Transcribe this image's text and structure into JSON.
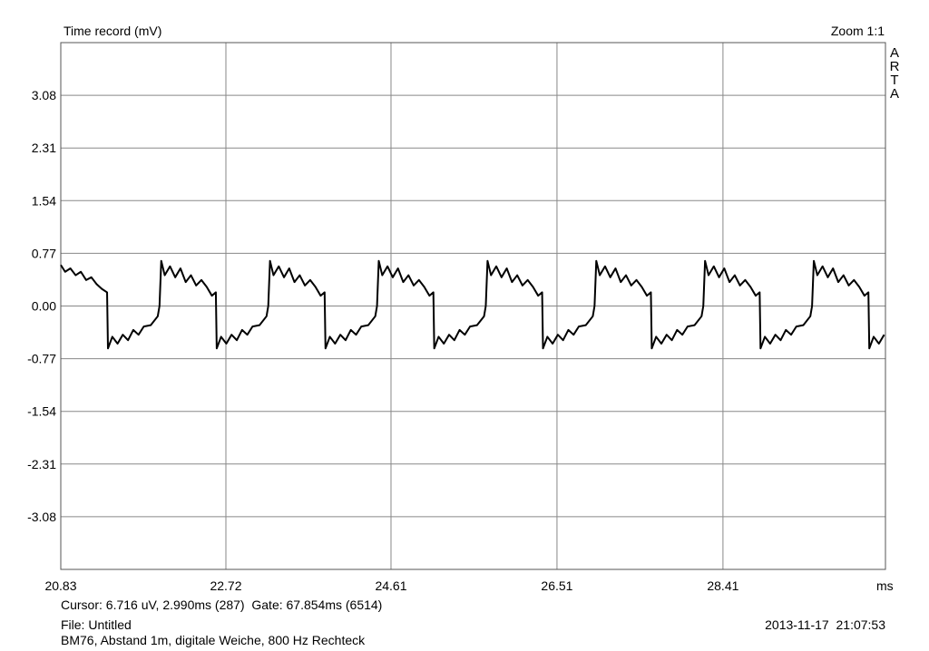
{
  "chart_data": {
    "type": "line",
    "title": "Time record (mV)",
    "zoom_label": "Zoom 1:1",
    "brand": "ARTA",
    "xlabel": "ms",
    "color": "#000000",
    "grid": true,
    "xlim": [
      20.83,
      30.27
    ],
    "xticks": [
      20.83,
      22.72,
      24.61,
      26.51,
      28.41
    ],
    "ylim": [
      -3.85,
      3.85
    ],
    "yticks": [
      -3.08,
      -2.31,
      -1.54,
      -0.77,
      {
        "value": 0,
        "label": "0.00"
      },
      0.77,
      1.54,
      2.31,
      3.08
    ],
    "x": [
      20.83,
      20.88,
      20.94,
      21.0,
      21.06,
      21.12,
      21.18,
      21.24,
      21.3,
      21.36,
      21.37,
      21.42,
      21.48,
      21.54,
      21.6,
      21.66,
      21.72,
      21.78,
      21.86,
      21.94,
      21.96,
      21.98,
      22.02,
      22.08,
      22.14,
      22.2,
      22.26,
      22.32,
      22.38,
      22.44,
      22.5,
      22.56,
      22.605,
      22.615,
      22.665,
      22.725,
      22.785,
      22.845,
      22.905,
      22.965,
      23.025,
      23.105,
      23.185,
      23.205,
      23.225,
      23.265,
      23.325,
      23.385,
      23.445,
      23.505,
      23.565,
      23.625,
      23.685,
      23.745,
      23.805,
      23.85,
      23.86,
      23.91,
      23.97,
      24.03,
      24.09,
      24.15,
      24.21,
      24.27,
      24.35,
      24.43,
      24.45,
      24.47,
      24.51,
      24.57,
      24.63,
      24.69,
      24.75,
      24.81,
      24.87,
      24.93,
      24.99,
      25.05,
      25.095,
      25.105,
      25.155,
      25.215,
      25.275,
      25.335,
      25.395,
      25.455,
      25.515,
      25.595,
      25.675,
      25.695,
      25.715,
      25.755,
      25.815,
      25.875,
      25.935,
      25.995,
      26.055,
      26.115,
      26.175,
      26.235,
      26.295,
      26.34,
      26.35,
      26.4,
      26.46,
      26.52,
      26.58,
      26.64,
      26.7,
      26.76,
      26.84,
      26.92,
      26.94,
      26.96,
      27.0,
      27.06,
      27.12,
      27.18,
      27.24,
      27.3,
      27.36,
      27.42,
      27.48,
      27.54,
      27.585,
      27.595,
      27.645,
      27.705,
      27.765,
      27.825,
      27.885,
      27.945,
      28.005,
      28.085,
      28.165,
      28.185,
      28.205,
      28.245,
      28.305,
      28.365,
      28.425,
      28.485,
      28.545,
      28.605,
      28.665,
      28.725,
      28.785,
      28.83,
      28.84,
      28.89,
      28.95,
      29.01,
      29.07,
      29.13,
      29.19,
      29.25,
      29.33,
      29.41,
      29.43,
      29.45,
      29.49,
      29.55,
      29.61,
      29.67,
      29.73,
      29.79,
      29.85,
      29.91,
      29.97,
      30.03,
      30.075,
      30.085,
      30.135,
      30.195,
      30.255
    ],
    "values": [
      0.6,
      0.5,
      0.55,
      0.45,
      0.5,
      0.38,
      0.42,
      0.32,
      0.25,
      0.2,
      -0.62,
      -0.45,
      -0.55,
      -0.42,
      -0.5,
      -0.35,
      -0.42,
      -0.3,
      -0.28,
      -0.15,
      0.0,
      0.66,
      0.45,
      0.58,
      0.42,
      0.55,
      0.35,
      0.45,
      0.3,
      0.38,
      0.28,
      0.15,
      0.2,
      -0.62,
      -0.45,
      -0.55,
      -0.42,
      -0.5,
      -0.35,
      -0.42,
      -0.3,
      -0.28,
      -0.15,
      0.0,
      0.66,
      0.45,
      0.58,
      0.42,
      0.55,
      0.35,
      0.45,
      0.3,
      0.38,
      0.28,
      0.15,
      0.2,
      -0.62,
      -0.45,
      -0.55,
      -0.42,
      -0.5,
      -0.35,
      -0.42,
      -0.3,
      -0.28,
      -0.15,
      0.0,
      0.66,
      0.45,
      0.58,
      0.42,
      0.55,
      0.35,
      0.45,
      0.3,
      0.38,
      0.28,
      0.15,
      0.2,
      -0.62,
      -0.45,
      -0.55,
      -0.42,
      -0.5,
      -0.35,
      -0.42,
      -0.3,
      -0.28,
      -0.15,
      0.0,
      0.66,
      0.45,
      0.58,
      0.42,
      0.55,
      0.35,
      0.45,
      0.3,
      0.38,
      0.28,
      0.15,
      0.2,
      -0.62,
      -0.45,
      -0.55,
      -0.42,
      -0.5,
      -0.35,
      -0.42,
      -0.3,
      -0.28,
      -0.15,
      0.0,
      0.66,
      0.45,
      0.58,
      0.42,
      0.55,
      0.35,
      0.45,
      0.3,
      0.38,
      0.28,
      0.15,
      0.2,
      -0.62,
      -0.45,
      -0.55,
      -0.42,
      -0.5,
      -0.35,
      -0.42,
      -0.3,
      -0.28,
      -0.15,
      0.0,
      0.66,
      0.45,
      0.58,
      0.42,
      0.55,
      0.35,
      0.45,
      0.3,
      0.38,
      0.28,
      0.15,
      0.2,
      -0.62,
      -0.45,
      -0.55,
      -0.42,
      -0.5,
      -0.35,
      -0.42,
      -0.3,
      -0.28,
      -0.15,
      0.0,
      0.66,
      0.45,
      0.58,
      0.42,
      0.55,
      0.35,
      0.45,
      0.3,
      0.38,
      0.28,
      0.15,
      0.2,
      -0.62,
      -0.45,
      -0.55,
      -0.42
    ]
  },
  "status": {
    "cursor": "Cursor: 6.716 uV, 2.990ms (287)  Gate: 67.854ms (6514)",
    "file": "File: Untitled",
    "description": "BM76, Abstand 1m, digitale Weiche, 800 Hz Rechteck",
    "timestamp": "2013-11-17  21:07:53"
  }
}
